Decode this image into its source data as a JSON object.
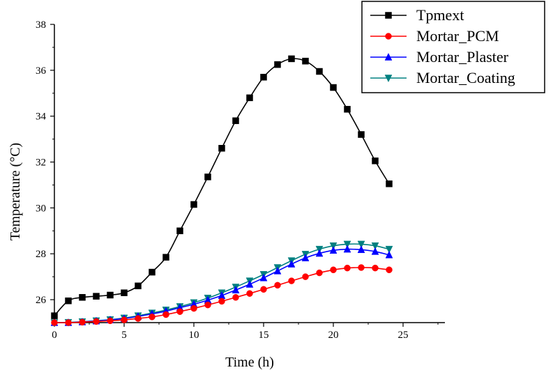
{
  "chart_data": {
    "type": "line",
    "title": "",
    "xlabel": "Time (h)",
    "ylabel": "Temperature (°C)",
    "xlim": [
      0,
      28
    ],
    "ylim": [
      25,
      38
    ],
    "xticks": [
      0,
      5,
      10,
      15,
      20,
      25
    ],
    "yticks": [
      26,
      28,
      30,
      32,
      34,
      36,
      38
    ],
    "grid": false,
    "legend_position": "top-right",
    "x": [
      0,
      1,
      2,
      3,
      4,
      5,
      6,
      7,
      8,
      9,
      10,
      11,
      12,
      13,
      14,
      15,
      16,
      17,
      18,
      19,
      20,
      21,
      22,
      23,
      24
    ],
    "series": [
      {
        "name": "Tpmext",
        "color": "#000000",
        "marker": "square",
        "values": [
          25.3,
          25.95,
          26.1,
          26.15,
          26.2,
          26.3,
          26.6,
          27.2,
          27.85,
          29.0,
          30.15,
          31.35,
          32.6,
          33.8,
          34.8,
          35.7,
          36.25,
          36.5,
          36.4,
          35.95,
          35.25,
          34.3,
          33.2,
          32.05,
          31.05
        ]
      },
      {
        "name": "Mortar_PCM",
        "color": "#ff0000",
        "marker": "circle",
        "values": [
          25.0,
          25.0,
          25.02,
          25.05,
          25.08,
          25.12,
          25.18,
          25.25,
          25.35,
          25.48,
          25.62,
          25.77,
          25.93,
          26.1,
          26.27,
          26.45,
          26.63,
          26.82,
          27.0,
          27.17,
          27.3,
          27.38,
          27.4,
          27.38,
          27.3
        ]
      },
      {
        "name": "Mortar_Plaster",
        "color": "#0000ff",
        "marker": "triangle-up",
        "values": [
          25.0,
          25.0,
          25.03,
          25.07,
          25.12,
          25.18,
          25.27,
          25.38,
          25.5,
          25.65,
          25.8,
          25.98,
          26.18,
          26.42,
          26.67,
          26.95,
          27.25,
          27.55,
          27.82,
          28.02,
          28.15,
          28.2,
          28.18,
          28.1,
          27.95
        ]
      },
      {
        "name": "Mortar_Coating",
        "color": "#008080",
        "marker": "triangle-down",
        "values": [
          25.0,
          25.01,
          25.04,
          25.08,
          25.13,
          25.2,
          25.3,
          25.42,
          25.55,
          25.7,
          25.87,
          26.07,
          26.3,
          26.55,
          26.82,
          27.1,
          27.4,
          27.7,
          27.98,
          28.2,
          28.35,
          28.42,
          28.42,
          28.35,
          28.2
        ]
      }
    ]
  }
}
